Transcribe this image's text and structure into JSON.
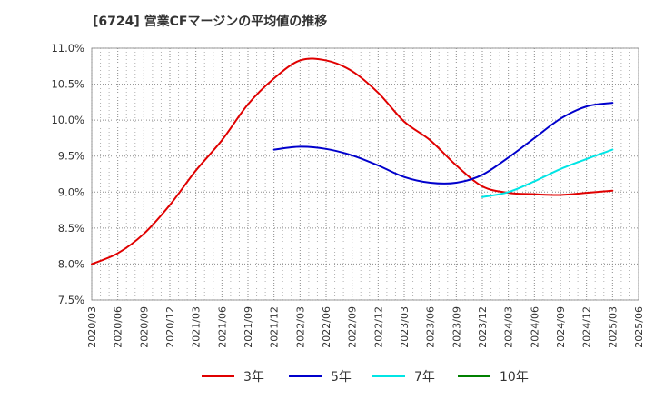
{
  "title": "[6724]  営業CFマージンの平均値の推移",
  "chart_data": {
    "type": "line",
    "title": "[6724]  営業CFマージンの平均値の推移",
    "xlabel": "",
    "ylabel": "",
    "y_tick_labels": [
      "7.5%",
      "8.0%",
      "8.5%",
      "9.0%",
      "9.5%",
      "10.0%",
      "10.5%",
      "11.0%"
    ],
    "ylim": [
      7.5,
      11.0
    ],
    "categories": [
      "2020/03",
      "2020/06",
      "2020/09",
      "2020/12",
      "2021/03",
      "2021/06",
      "2021/09",
      "2021/12",
      "2022/03",
      "2022/06",
      "2022/09",
      "2022/12",
      "2023/03",
      "2023/06",
      "2023/09",
      "2023/12",
      "2024/03",
      "2024/06",
      "2024/09",
      "2024/12",
      "2025/03",
      "2025/06"
    ],
    "grid": true,
    "legend_position": "bottom",
    "series": [
      {
        "name": "3年",
        "color": "#e00000",
        "values": [
          8.0,
          8.15,
          8.42,
          8.82,
          9.3,
          9.72,
          10.22,
          10.58,
          10.83,
          10.83,
          10.68,
          10.38,
          9.98,
          9.72,
          9.37,
          9.08,
          8.99,
          8.97,
          8.96,
          8.99,
          9.02,
          null
        ]
      },
      {
        "name": "5年",
        "color": "#0000cc",
        "values": [
          null,
          null,
          null,
          null,
          null,
          null,
          null,
          9.59,
          9.63,
          9.6,
          9.51,
          9.37,
          9.21,
          9.13,
          9.13,
          9.24,
          9.48,
          9.75,
          10.02,
          10.19,
          10.24,
          null
        ]
      },
      {
        "name": "7年",
        "color": "#00e5e5",
        "values": [
          null,
          null,
          null,
          null,
          null,
          null,
          null,
          null,
          null,
          null,
          null,
          null,
          null,
          null,
          null,
          8.93,
          9.0,
          9.15,
          9.32,
          9.46,
          9.59,
          null
        ]
      },
      {
        "name": "10年",
        "color": "#008000",
        "values": [
          null,
          null,
          null,
          null,
          null,
          null,
          null,
          null,
          null,
          null,
          null,
          null,
          null,
          null,
          null,
          null,
          null,
          null,
          null,
          null,
          null,
          null
        ]
      }
    ]
  }
}
